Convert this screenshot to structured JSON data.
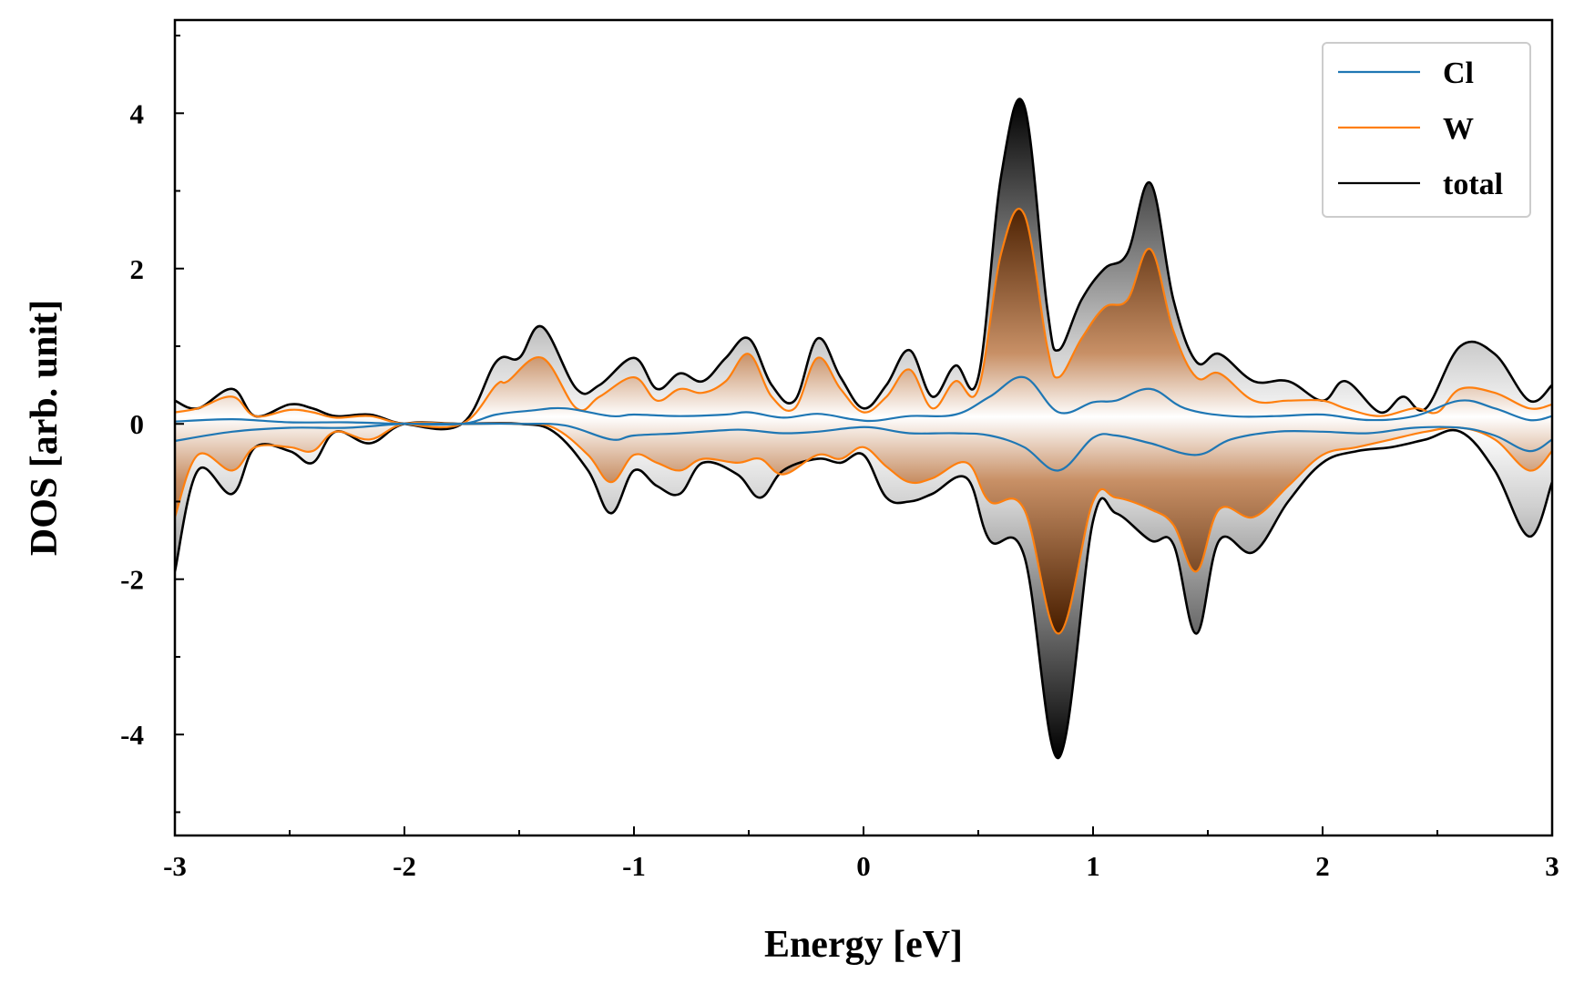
{
  "chart_data": {
    "type": "line",
    "xlabel": "Energy [eV]",
    "ylabel": "DOS [arb. unit]",
    "xlim": [
      -3,
      3
    ],
    "ylim": [
      -5.3,
      5.2
    ],
    "xticks": [
      -3,
      -2,
      -1,
      0,
      1,
      2,
      3
    ],
    "yticks": [
      -4,
      -2,
      0,
      2,
      4
    ],
    "grid": false,
    "legend_position": "top-right",
    "fill": "vertical gradient fills between spin-up and spin-down curves (dark at extremes, white at zero)",
    "series": [
      {
        "name": "Cl",
        "color": "#1f77b4",
        "up": {
          "x": [
            -3.0,
            -2.75,
            -2.5,
            -2.25,
            -2.0,
            -1.75,
            -1.6,
            -1.45,
            -1.3,
            -1.1,
            -1.0,
            -0.8,
            -0.6,
            -0.5,
            -0.35,
            -0.2,
            -0.05,
            0.05,
            0.2,
            0.4,
            0.55,
            0.7,
            0.85,
            1.0,
            1.1,
            1.25,
            1.4,
            1.6,
            1.8,
            2.0,
            2.2,
            2.4,
            2.6,
            2.75,
            2.9,
            3.0
          ],
          "y": [
            0.03,
            0.06,
            0.02,
            0.02,
            0.0,
            0.0,
            0.12,
            0.17,
            0.2,
            0.1,
            0.12,
            0.1,
            0.12,
            0.15,
            0.08,
            0.13,
            0.06,
            0.04,
            0.1,
            0.12,
            0.35,
            0.6,
            0.15,
            0.28,
            0.3,
            0.45,
            0.2,
            0.1,
            0.1,
            0.12,
            0.05,
            0.1,
            0.3,
            0.2,
            0.05,
            0.1
          ]
        },
        "down": {
          "x": [
            -3.0,
            -2.75,
            -2.5,
            -2.25,
            -2.0,
            -1.75,
            -1.5,
            -1.3,
            -1.1,
            -1.0,
            -0.8,
            -0.6,
            -0.5,
            -0.35,
            -0.2,
            -0.05,
            0.05,
            0.2,
            0.4,
            0.55,
            0.7,
            0.85,
            1.0,
            1.1,
            1.25,
            1.45,
            1.6,
            1.8,
            2.0,
            2.2,
            2.4,
            2.6,
            2.75,
            2.9,
            3.0
          ],
          "y": [
            -0.22,
            -0.1,
            -0.05,
            -0.05,
            0.0,
            0.0,
            0.0,
            -0.02,
            -0.2,
            -0.15,
            -0.12,
            -0.08,
            -0.08,
            -0.12,
            -0.1,
            -0.05,
            -0.05,
            -0.12,
            -0.12,
            -0.15,
            -0.3,
            -0.6,
            -0.18,
            -0.15,
            -0.25,
            -0.4,
            -0.2,
            -0.1,
            -0.1,
            -0.12,
            -0.05,
            -0.05,
            -0.15,
            -0.35,
            -0.2
          ]
        }
      },
      {
        "name": "W",
        "color": "#ff7f0e",
        "up": {
          "x": [
            -3.0,
            -2.9,
            -2.75,
            -2.65,
            -2.5,
            -2.4,
            -2.3,
            -2.15,
            -2.0,
            -1.75,
            -1.6,
            -1.55,
            -1.4,
            -1.25,
            -1.15,
            -1.0,
            -0.9,
            -0.8,
            -0.7,
            -0.6,
            -0.5,
            -0.4,
            -0.3,
            -0.2,
            -0.1,
            0.0,
            0.1,
            0.2,
            0.3,
            0.4,
            0.5,
            0.6,
            0.7,
            0.8,
            0.85,
            0.95,
            1.05,
            1.15,
            1.25,
            1.35,
            1.45,
            1.55,
            1.7,
            1.85,
            2.0,
            2.1,
            2.25,
            2.4,
            2.5,
            2.6,
            2.75,
            2.9,
            3.0
          ],
          "y": [
            0.15,
            0.2,
            0.35,
            0.1,
            0.18,
            0.15,
            0.08,
            0.1,
            0.0,
            0.0,
            0.5,
            0.55,
            0.85,
            0.2,
            0.35,
            0.6,
            0.3,
            0.45,
            0.4,
            0.55,
            0.9,
            0.35,
            0.2,
            0.85,
            0.45,
            0.15,
            0.35,
            0.7,
            0.2,
            0.55,
            0.45,
            2.2,
            2.7,
            1.0,
            0.6,
            1.1,
            1.5,
            1.6,
            2.25,
            1.2,
            0.6,
            0.65,
            0.3,
            0.3,
            0.3,
            0.2,
            0.1,
            0.2,
            0.15,
            0.45,
            0.4,
            0.2,
            0.25
          ]
        },
        "down": {
          "x": [
            -3.0,
            -2.9,
            -2.75,
            -2.65,
            -2.5,
            -2.4,
            -2.3,
            -2.15,
            -2.0,
            -1.75,
            -1.5,
            -1.35,
            -1.2,
            -1.1,
            -1.0,
            -0.9,
            -0.8,
            -0.7,
            -0.55,
            -0.45,
            -0.35,
            -0.2,
            -0.1,
            0.0,
            0.1,
            0.2,
            0.3,
            0.45,
            0.55,
            0.7,
            0.85,
            1.0,
            1.1,
            1.25,
            1.35,
            1.45,
            1.55,
            1.7,
            1.85,
            2.0,
            2.15,
            2.3,
            2.45,
            2.6,
            2.75,
            2.9,
            3.0
          ],
          "y": [
            -1.2,
            -0.4,
            -0.6,
            -0.3,
            -0.3,
            -0.35,
            -0.1,
            -0.2,
            0.0,
            0.0,
            0.0,
            -0.05,
            -0.4,
            -0.75,
            -0.4,
            -0.5,
            -0.6,
            -0.45,
            -0.5,
            -0.45,
            -0.65,
            -0.4,
            -0.45,
            -0.3,
            -0.55,
            -0.75,
            -0.7,
            -0.5,
            -1.0,
            -1.1,
            -2.7,
            -1.0,
            -0.95,
            -1.1,
            -1.3,
            -1.9,
            -1.1,
            -1.2,
            -0.8,
            -0.4,
            -0.3,
            -0.2,
            -0.1,
            -0.05,
            -0.2,
            -0.6,
            -0.35
          ]
        }
      },
      {
        "name": "total",
        "color": "#000000",
        "up": {
          "x": [
            -3.0,
            -2.9,
            -2.75,
            -2.65,
            -2.5,
            -2.4,
            -2.3,
            -2.15,
            -2.0,
            -1.75,
            -1.6,
            -1.5,
            -1.4,
            -1.25,
            -1.15,
            -1.0,
            -0.9,
            -0.8,
            -0.7,
            -0.6,
            -0.5,
            -0.4,
            -0.3,
            -0.2,
            -0.1,
            0.0,
            0.1,
            0.2,
            0.3,
            0.4,
            0.5,
            0.6,
            0.7,
            0.8,
            0.85,
            0.95,
            1.05,
            1.15,
            1.25,
            1.35,
            1.45,
            1.55,
            1.7,
            1.85,
            2.0,
            2.1,
            2.25,
            2.35,
            2.45,
            2.6,
            2.75,
            2.9,
            3.0
          ],
          "y": [
            0.3,
            0.2,
            0.45,
            0.1,
            0.25,
            0.2,
            0.1,
            0.12,
            0.0,
            0.0,
            0.8,
            0.85,
            1.25,
            0.45,
            0.5,
            0.85,
            0.45,
            0.65,
            0.55,
            0.85,
            1.1,
            0.5,
            0.3,
            1.1,
            0.6,
            0.2,
            0.5,
            0.95,
            0.35,
            0.75,
            0.6,
            3.2,
            4.1,
            1.5,
            0.95,
            1.6,
            2.0,
            2.2,
            3.1,
            1.6,
            0.8,
            0.9,
            0.55,
            0.55,
            0.3,
            0.55,
            0.15,
            0.35,
            0.2,
            1.0,
            0.9,
            0.3,
            0.5
          ]
        },
        "down": {
          "x": [
            -3.0,
            -2.9,
            -2.75,
            -2.65,
            -2.5,
            -2.4,
            -2.3,
            -2.15,
            -2.0,
            -1.75,
            -1.5,
            -1.35,
            -1.2,
            -1.1,
            -1.0,
            -0.9,
            -0.8,
            -0.7,
            -0.55,
            -0.45,
            -0.35,
            -0.2,
            -0.1,
            0.0,
            0.1,
            0.2,
            0.3,
            0.45,
            0.55,
            0.7,
            0.85,
            1.0,
            1.1,
            1.25,
            1.35,
            1.45,
            1.55,
            1.7,
            1.85,
            2.0,
            2.15,
            2.3,
            2.45,
            2.6,
            2.75,
            2.9,
            3.0
          ],
          "y": [
            -1.9,
            -0.6,
            -0.9,
            -0.3,
            -0.35,
            -0.5,
            -0.1,
            -0.25,
            0.0,
            0.0,
            0.0,
            -0.1,
            -0.6,
            -1.15,
            -0.6,
            -0.8,
            -0.9,
            -0.5,
            -0.65,
            -0.95,
            -0.6,
            -0.45,
            -0.5,
            -0.4,
            -0.95,
            -1.0,
            -0.9,
            -0.7,
            -1.5,
            -1.7,
            -4.3,
            -1.25,
            -1.15,
            -1.5,
            -1.55,
            -2.7,
            -1.5,
            -1.65,
            -1.0,
            -0.5,
            -0.35,
            -0.3,
            -0.2,
            -0.1,
            -0.6,
            -1.45,
            -0.75
          ]
        }
      }
    ]
  }
}
